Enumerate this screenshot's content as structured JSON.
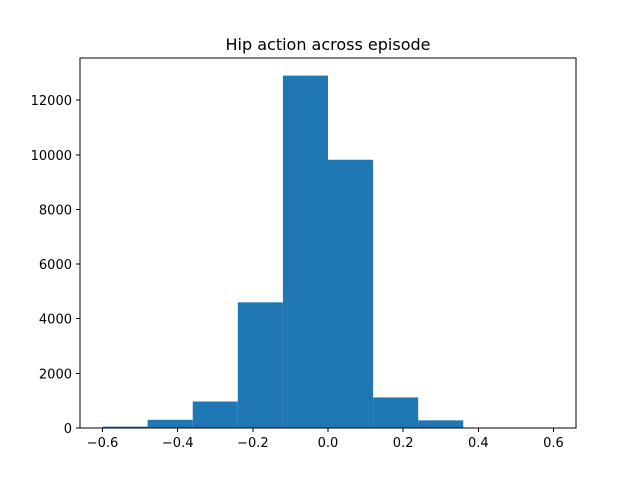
{
  "chart_data": {
    "type": "bar",
    "title": "Hip action across episode",
    "xlabel": "",
    "ylabel": "",
    "bin_edges": [
      -0.6,
      -0.48,
      -0.36,
      -0.24,
      -0.12,
      0.0,
      0.12,
      0.24,
      0.36,
      0.48,
      0.6
    ],
    "values": [
      50,
      300,
      970,
      4600,
      12900,
      9820,
      1120,
      280,
      15,
      5
    ],
    "xlim": [
      -0.66,
      0.66
    ],
    "ylim": [
      0,
      13545
    ],
    "x_ticks": [
      -0.6,
      -0.4,
      -0.2,
      0.0,
      0.2,
      0.4,
      0.6
    ],
    "x_tick_labels": [
      "−0.6",
      "−0.4",
      "−0.2",
      "0.0",
      "0.2",
      "0.4",
      "0.6"
    ],
    "y_ticks": [
      0,
      2000,
      4000,
      6000,
      8000,
      10000,
      12000
    ],
    "y_tick_labels": [
      "0",
      "2000",
      "4000",
      "6000",
      "8000",
      "10000",
      "12000"
    ],
    "bar_color": "#1f77b4",
    "grid": false,
    "legend": "none"
  }
}
